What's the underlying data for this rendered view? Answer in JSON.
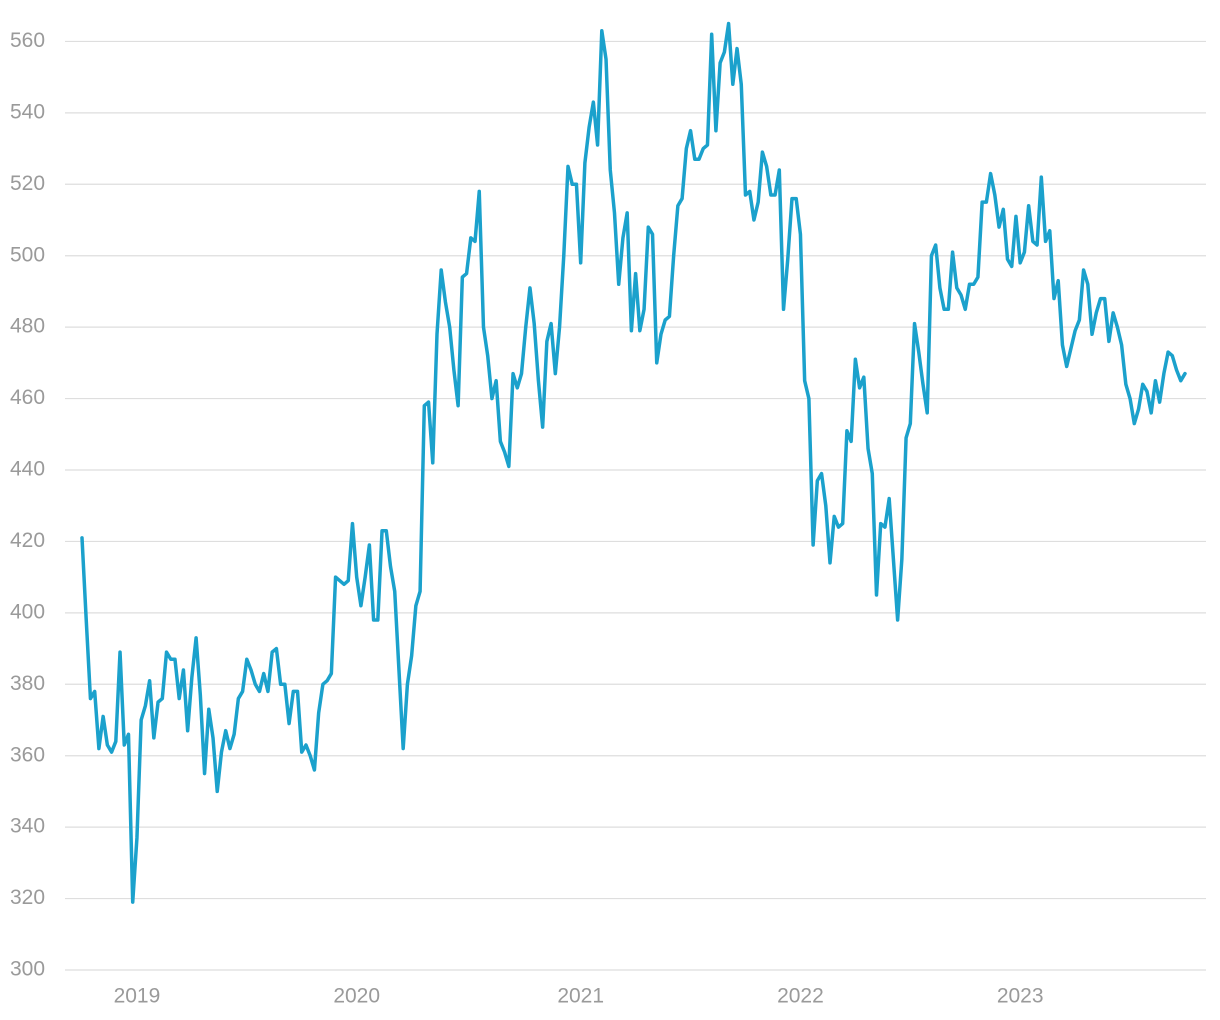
{
  "chart_data": {
    "type": "line",
    "categories": [
      null,
      null,
      null,
      null,
      null,
      null,
      null,
      null,
      null,
      null,
      null,
      null,
      null,
      "2019",
      null,
      null,
      null,
      null,
      null,
      null,
      null,
      null,
      null,
      null,
      null,
      null,
      null,
      null,
      null,
      null,
      null,
      null,
      null,
      null,
      null,
      null,
      null,
      null,
      null,
      null,
      null,
      null,
      null,
      null,
      null,
      null,
      null,
      null,
      null,
      null,
      null,
      null,
      null,
      null,
      null,
      null,
      null,
      null,
      null,
      null,
      null,
      null,
      null,
      null,
      null,
      "2020",
      null,
      null,
      null,
      null,
      null,
      null,
      null,
      null,
      null,
      null,
      null,
      null,
      null,
      null,
      null,
      null,
      null,
      null,
      null,
      null,
      null,
      null,
      null,
      null,
      null,
      null,
      null,
      null,
      null,
      null,
      null,
      null,
      null,
      null,
      null,
      null,
      null,
      null,
      null,
      null,
      null,
      null,
      null,
      null,
      null,
      null,
      null,
      null,
      null,
      null,
      null,
      null,
      "2021",
      null,
      null,
      null,
      null,
      null,
      null,
      null,
      null,
      null,
      null,
      null,
      null,
      null,
      null,
      null,
      null,
      null,
      null,
      null,
      null,
      null,
      null,
      null,
      null,
      null,
      null,
      null,
      null,
      null,
      null,
      null,
      null,
      null,
      null,
      null,
      null,
      null,
      null,
      null,
      null,
      null,
      null,
      null,
      null,
      null,
      null,
      null,
      null,
      null,
      null,
      null,
      "2022",
      null,
      null,
      null,
      null,
      null,
      null,
      null,
      null,
      null,
      null,
      null,
      null,
      null,
      null,
      null,
      null,
      null,
      null,
      null,
      null,
      null,
      null,
      null,
      null,
      null,
      null,
      null,
      null,
      null,
      null,
      null,
      null,
      null,
      null,
      null,
      null,
      null,
      null,
      null,
      null,
      null,
      null,
      null,
      null,
      null,
      null,
      null,
      null,
      null,
      null,
      null,
      "2023",
      null,
      null,
      null,
      null,
      null,
      null,
      null,
      null,
      null,
      null,
      null,
      null,
      null,
      null,
      null,
      null,
      null,
      null,
      null,
      null,
      null,
      null,
      null,
      null,
      null,
      null,
      null,
      null,
      null,
      null,
      null,
      null,
      null,
      null,
      null,
      null,
      null,
      null,
      null
    ],
    "values": [
      421,
      398,
      376,
      378,
      362,
      371,
      363,
      361,
      364,
      389,
      363,
      366,
      319,
      337,
      370,
      374,
      381,
      365,
      375,
      376,
      389,
      387,
      387,
      376,
      384,
      367,
      382,
      393,
      377,
      355,
      373,
      365,
      350,
      361,
      367,
      362,
      366,
      376,
      378,
      387,
      384,
      380,
      378,
      383,
      378,
      389,
      390,
      380,
      380,
      369,
      378,
      378,
      361,
      363,
      360,
      356,
      372,
      380,
      381,
      383,
      410,
      409,
      408,
      409,
      425,
      410,
      402,
      410,
      419,
      398,
      398,
      423,
      423,
      413,
      406,
      384,
      362,
      380,
      388,
      402,
      406,
      458,
      459,
      442,
      478,
      496,
      487,
      480,
      468,
      458,
      494,
      495,
      505,
      504,
      518,
      480,
      472,
      460,
      465,
      448,
      445,
      441,
      467,
      463,
      467,
      480,
      491,
      481,
      465,
      452,
      476,
      481,
      467,
      480,
      500,
      525,
      520,
      520,
      498,
      526,
      536,
      543,
      531,
      563,
      555,
      524,
      512,
      492,
      505,
      512,
      479,
      495,
      479,
      485,
      508,
      506,
      470,
      478,
      482,
      483,
      500,
      514,
      516,
      530,
      535,
      527,
      527,
      530,
      531,
      562,
      535,
      554,
      557,
      565,
      548,
      558,
      548,
      517,
      518,
      510,
      515,
      529,
      525,
      517,
      517,
      524,
      485,
      499,
      516,
      516,
      506,
      465,
      460,
      419,
      437,
      439,
      430,
      414,
      427,
      424,
      425,
      451,
      448,
      471,
      463,
      466,
      446,
      439,
      405,
      425,
      424,
      432,
      415,
      398,
      415,
      449,
      453,
      481,
      473,
      464,
      456,
      500,
      503,
      491,
      485,
      485,
      501,
      491,
      489,
      485,
      492,
      492,
      494,
      515,
      515,
      523,
      517,
      508,
      513,
      499,
      497,
      511,
      498,
      501,
      514,
      504,
      503,
      522,
      504,
      507,
      488,
      493,
      475,
      469,
      474,
      479,
      482,
      496,
      492,
      478,
      484,
      488,
      488,
      476,
      484,
      480,
      475,
      464,
      460,
      453,
      457,
      464,
      462,
      456,
      465,
      459,
      467,
      473,
      472,
      468,
      465,
      467
    ],
    "color": "#1ba1cc",
    "ylim": [
      300,
      566
    ],
    "yticks": [
      300,
      320,
      340,
      360,
      380,
      400,
      420,
      440,
      460,
      480,
      500,
      520,
      540,
      560
    ],
    "grid": true
  }
}
